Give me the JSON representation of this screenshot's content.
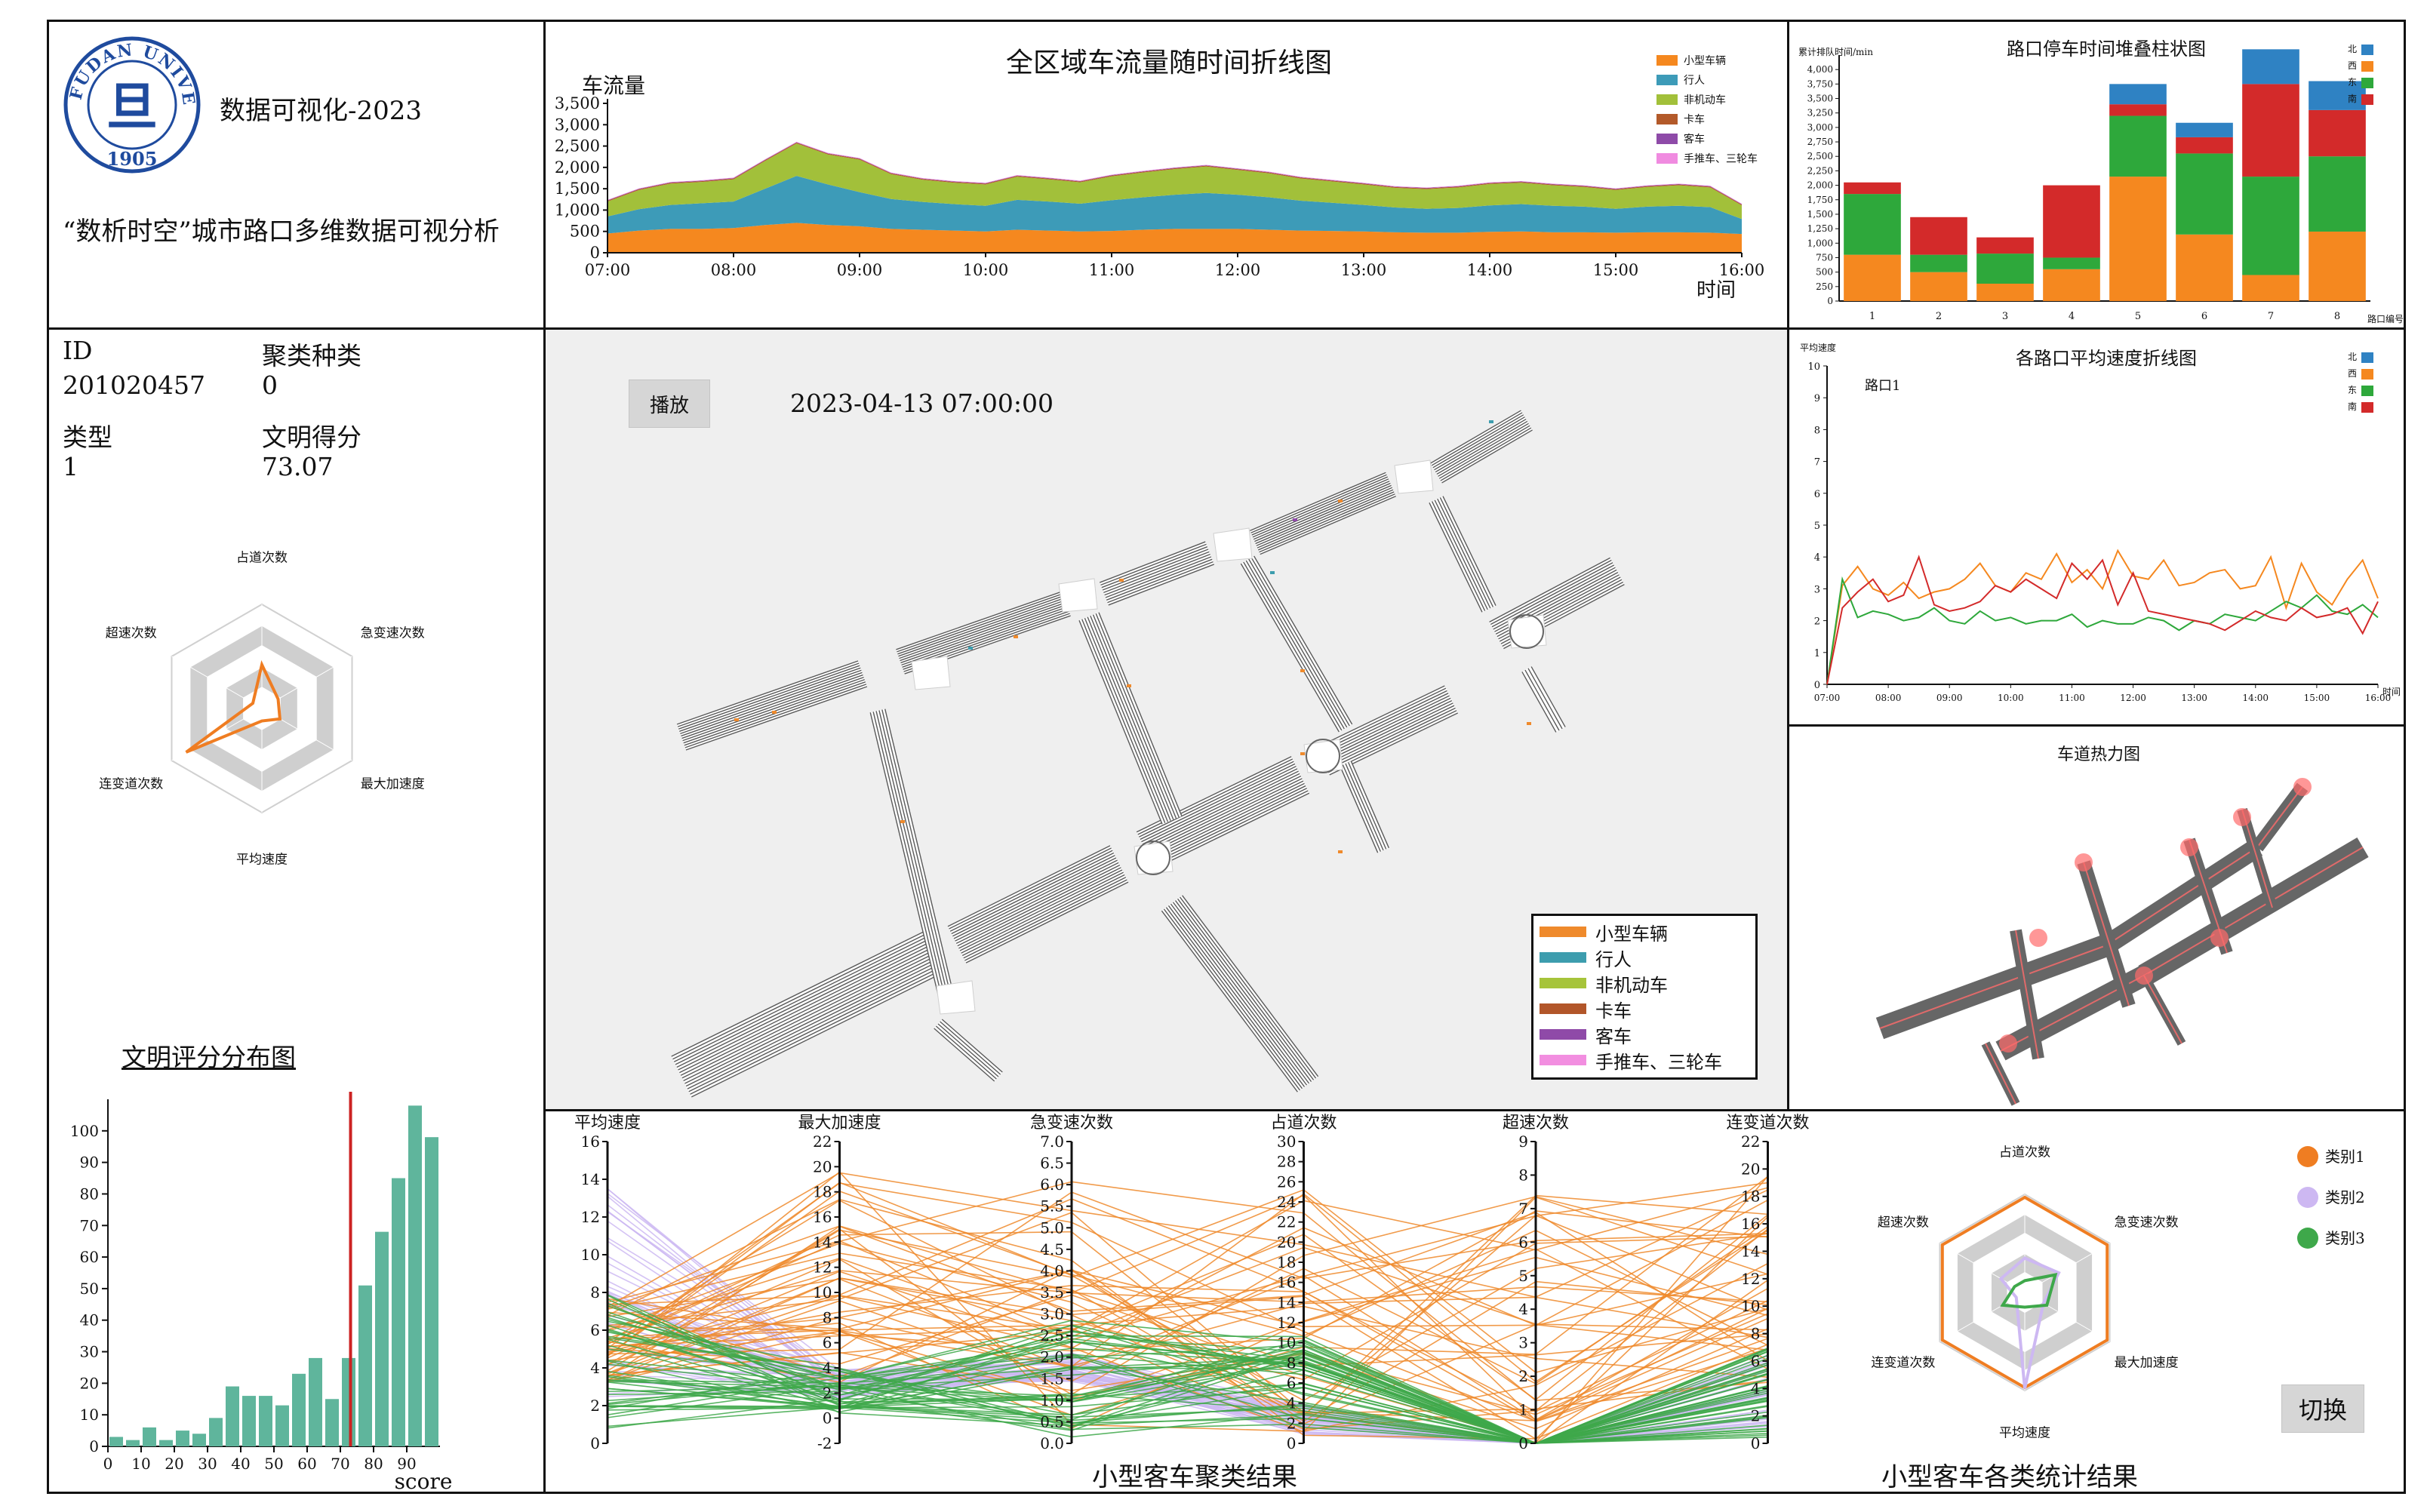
{
  "header": {
    "university": "FUDAN UNIVERSITY",
    "year": "1905",
    "seal_char": "旦",
    "course": "数据可视化-2023",
    "project_title": "“数析时空”城市路口多维数据可视分析"
  },
  "profile": {
    "id_label": "ID",
    "id_value": "201020457",
    "cluster_label": "聚类种类",
    "cluster_value": "0",
    "type_label": "类型",
    "type_value": "1",
    "score_label": "文明得分",
    "score_value": "73.07"
  },
  "radar": {
    "axes": [
      "占道次数",
      "急变速次数",
      "最大加速度",
      "平均速度",
      "连变道次数",
      "超速次数"
    ],
    "values": [
      0.42,
      0.18,
      0.2,
      0.12,
      0.84,
      0.1
    ],
    "color": "#ef7d22"
  },
  "histogram": {
    "title": "文明评分分布图",
    "chart_data": {
      "type": "bar",
      "x": [
        2.5,
        7.5,
        12.5,
        17.5,
        22.5,
        27.5,
        32.5,
        37.5,
        42.5,
        47.5,
        52.5,
        57.5,
        62.5,
        67.5,
        72.5,
        77.5,
        82.5,
        87.5,
        92.5,
        97.5
      ],
      "values": [
        3,
        2,
        6,
        2,
        5,
        4,
        9,
        19,
        16,
        16,
        13,
        23,
        28,
        15,
        28,
        51,
        68,
        85,
        108,
        98
      ],
      "xlabel": "score",
      "xticks": [
        0,
        10,
        20,
        30,
        40,
        50,
        60,
        70,
        80,
        90
      ],
      "yticks": [
        0,
        10,
        20,
        30,
        40,
        50,
        60,
        70,
        80,
        90,
        100
      ],
      "ylim": [
        0,
        110
      ],
      "marker": 73.07,
      "bar_color": "#5fb59c",
      "marker_color": "#cc2222"
    }
  },
  "flow": {
    "title": "全区域车流量随时间折线图",
    "ylabel": "车流量",
    "xlabel": "时间",
    "legend": [
      "小型车辆",
      "行人",
      "非机动车",
      "卡车",
      "客车",
      "手推车、三轮车"
    ],
    "chart_data": {
      "type": "area",
      "x": [
        "07:00",
        "07:15",
        "07:30",
        "07:45",
        "08:00",
        "08:15",
        "08:30",
        "08:45",
        "09:00",
        "09:15",
        "09:30",
        "09:45",
        "10:00",
        "10:15",
        "10:30",
        "10:45",
        "11:00",
        "11:15",
        "11:30",
        "11:45",
        "12:00",
        "12:15",
        "12:30",
        "12:45",
        "13:00",
        "13:15",
        "13:30",
        "13:45",
        "14:00",
        "14:15",
        "14:30",
        "14:45",
        "15:00",
        "15:15",
        "15:30",
        "15:45",
        "16:00"
      ],
      "xticks": [
        "07:00",
        "08:00",
        "09:00",
        "10:00",
        "11:00",
        "12:00",
        "13:00",
        "14:00",
        "15:00",
        "16:00"
      ],
      "yticks": [
        0,
        500,
        1000,
        1500,
        2000,
        2500,
        3000,
        3500
      ],
      "ylim": [
        0,
        3500
      ],
      "series": [
        {
          "name": "小型车辆",
          "values": [
            450,
            520,
            560,
            560,
            580,
            650,
            700,
            650,
            620,
            560,
            540,
            520,
            500,
            540,
            520,
            500,
            510,
            540,
            560,
            560,
            560,
            540,
            520,
            510,
            500,
            480,
            470,
            470,
            490,
            500,
            480,
            480,
            470,
            480,
            480,
            470,
            440
          ]
        },
        {
          "name": "行人",
          "values": [
            400,
            500,
            560,
            600,
            620,
            850,
            1100,
            950,
            800,
            700,
            650,
            620,
            600,
            700,
            680,
            650,
            720,
            760,
            800,
            840,
            800,
            760,
            700,
            660,
            620,
            580,
            560,
            580,
            620,
            640,
            620,
            600,
            560,
            600,
            620,
            600,
            350
          ]
        },
        {
          "name": "非机动车",
          "values": [
            350,
            450,
            500,
            500,
            520,
            650,
            760,
            700,
            760,
            580,
            520,
            500,
            500,
            540,
            520,
            500,
            560,
            580,
            600,
            620,
            580,
            560,
            520,
            500,
            480,
            460,
            460,
            480,
            500,
            500,
            480,
            460,
            440,
            460,
            480,
            460,
            320
          ]
        },
        {
          "name": "卡车",
          "values": [
            20,
            20,
            20,
            20,
            20,
            20,
            20,
            20,
            20,
            20,
            20,
            20,
            20,
            20,
            20,
            20,
            20,
            20,
            20,
            20,
            20,
            20,
            20,
            20,
            20,
            20,
            20,
            20,
            20,
            20,
            20,
            20,
            20,
            20,
            20,
            20,
            20
          ]
        },
        {
          "name": "客车",
          "values": [
            10,
            10,
            10,
            10,
            10,
            10,
            10,
            10,
            10,
            10,
            10,
            10,
            10,
            10,
            10,
            10,
            10,
            10,
            10,
            10,
            10,
            10,
            10,
            10,
            10,
            10,
            10,
            10,
            10,
            10,
            10,
            10,
            10,
            10,
            10,
            10,
            10
          ]
        },
        {
          "name": "手推车、三轮车",
          "values": [
            10,
            10,
            10,
            10,
            10,
            10,
            10,
            10,
            10,
            10,
            10,
            10,
            10,
            10,
            10,
            10,
            10,
            10,
            10,
            10,
            10,
            10,
            10,
            10,
            10,
            10,
            10,
            10,
            10,
            10,
            10,
            10,
            10,
            10,
            10,
            10,
            10
          ]
        }
      ]
    }
  },
  "stack": {
    "title": "路口停车时间堆叠柱状图",
    "ylabel": "累计排队时间/min",
    "xlabel": "路口编号",
    "legend": [
      "北",
      "西",
      "东",
      "南"
    ],
    "chart_data": {
      "type": "bar",
      "categories": [
        "1",
        "2",
        "3",
        "4",
        "5",
        "6",
        "7",
        "8"
      ],
      "yticks": [
        0,
        250,
        500,
        750,
        1000,
        1250,
        1500,
        1750,
        2000,
        2250,
        2500,
        2750,
        3000,
        3250,
        3500,
        3750,
        4000
      ],
      "ylim": [
        0,
        4250
      ],
      "series": [
        {
          "name": "西",
          "values": [
            800,
            500,
            300,
            550,
            2150,
            1150,
            450,
            1200
          ]
        },
        {
          "name": "东",
          "values": [
            1050,
            300,
            520,
            200,
            1050,
            1400,
            1700,
            1300
          ]
        },
        {
          "name": "南",
          "values": [
            200,
            650,
            280,
            1250,
            200,
            280,
            1600,
            800
          ]
        },
        {
          "name": "北",
          "values": [
            0,
            0,
            0,
            0,
            350,
            250,
            600,
            500
          ]
        }
      ]
    }
  },
  "speed": {
    "title": "各路口平均速度折线图",
    "ylabel": "平均速度",
    "xlabel": "时间",
    "crossing_label": "路口1",
    "legend": [
      "北",
      "西",
      "东",
      "南"
    ],
    "chart_data": {
      "type": "line",
      "x": [
        "07:00",
        "07:15",
        "07:30",
        "07:45",
        "08:00",
        "08:15",
        "08:30",
        "08:45",
        "09:00",
        "09:15",
        "09:30",
        "09:45",
        "10:00",
        "10:15",
        "10:30",
        "10:45",
        "11:00",
        "11:15",
        "11:30",
        "11:45",
        "12:00",
        "12:15",
        "12:30",
        "12:45",
        "13:00",
        "13:15",
        "13:30",
        "13:45",
        "14:00",
        "14:15",
        "14:30",
        "14:45",
        "15:00",
        "15:15",
        "15:30",
        "15:45",
        "16:00"
      ],
      "xticks": [
        "07:00",
        "08:00",
        "09:00",
        "10:00",
        "11:00",
        "12:00",
        "13:00",
        "14:00",
        "15:00",
        "16:00"
      ],
      "yticks": [
        0,
        1,
        2,
        3,
        4,
        5,
        6,
        7,
        8,
        9,
        10
      ],
      "ylim": [
        0,
        10
      ],
      "series": [
        {
          "name": "西",
          "values": [
            0,
            3.1,
            3.7,
            3.0,
            2.8,
            3.2,
            2.7,
            2.9,
            3.0,
            3.3,
            3.8,
            3.1,
            2.9,
            3.5,
            3.3,
            4.1,
            3.2,
            3.6,
            3.0,
            4.2,
            3.4,
            3.3,
            3.9,
            3.1,
            3.2,
            3.5,
            3.6,
            3.0,
            3.1,
            4.0,
            2.4,
            3.8,
            2.9,
            2.5,
            3.3,
            3.9,
            2.7
          ]
        },
        {
          "name": "东",
          "values": [
            0,
            3.3,
            2.1,
            2.3,
            2.2,
            2.0,
            2.1,
            2.4,
            2.0,
            1.9,
            2.3,
            2.0,
            2.1,
            1.9,
            2.0,
            2.0,
            2.2,
            1.8,
            2.0,
            1.9,
            1.9,
            2.1,
            2.0,
            1.7,
            2.0,
            1.9,
            2.2,
            2.1,
            2.0,
            2.3,
            2.6,
            2.4,
            2.8,
            2.3,
            2.2,
            2.5,
            2.1
          ]
        },
        {
          "name": "南",
          "values": [
            0,
            2.4,
            2.9,
            3.3,
            2.6,
            2.8,
            4.0,
            2.5,
            2.3,
            2.4,
            2.6,
            3.1,
            2.9,
            3.3,
            3.0,
            2.7,
            3.8,
            3.3,
            3.9,
            2.5,
            3.5,
            2.3,
            2.2,
            2.1,
            2.0,
            1.9,
            1.7,
            2.0,
            2.3,
            2.1,
            2.0,
            2.4,
            2.1,
            2.2,
            2.4,
            1.6,
            2.6
          ]
        }
      ]
    }
  },
  "map": {
    "play_label": "播放",
    "timestamp": "2023-04-13 07:00:00",
    "legend": [
      {
        "label": "小型车辆",
        "color": "#ef8a2c"
      },
      {
        "label": "行人",
        "color": "#3d9dae"
      },
      {
        "label": "非机动车",
        "color": "#a6c43a"
      },
      {
        "label": "卡车",
        "color": "#b2562a"
      },
      {
        "label": "客车",
        "color": "#8f4aa8"
      },
      {
        "label": "手推车、三轮车",
        "color": "#f28ee0"
      }
    ]
  },
  "heatmap": {
    "title": "车道热力图"
  },
  "parallel": {
    "title": "小型客车聚类结果",
    "axes": [
      {
        "name": "平均速度",
        "ticks": [
          "16",
          "14",
          "12",
          "10",
          "8",
          "6",
          "4",
          "2",
          "0"
        ]
      },
      {
        "name": "最大加速度",
        "ticks": [
          "22",
          "20",
          "18",
          "16",
          "14",
          "12",
          "10",
          "8",
          "6",
          "4",
          "2",
          "0",
          "-2"
        ]
      },
      {
        "name": "急变速次数",
        "ticks": [
          "7.0",
          "6.5",
          "6.0",
          "5.5",
          "5.0",
          "4.5",
          "4.0",
          "3.5",
          "3.0",
          "2.5",
          "2.0",
          "1.5",
          "1.0",
          "0.5",
          "0.0"
        ]
      },
      {
        "name": "占道次数",
        "ticks": [
          "30",
          "28",
          "26",
          "24",
          "22",
          "20",
          "18",
          "16",
          "14",
          "12",
          "10",
          "8",
          "6",
          "4",
          "2",
          "0"
        ]
      },
      {
        "name": "超速次数",
        "ticks": [
          "9",
          "8",
          "7",
          "6",
          "5",
          "4",
          "3",
          "2",
          "1",
          "0"
        ]
      },
      {
        "name": "连变道次数",
        "ticks": [
          "22",
          "20",
          "18",
          "16",
          "14",
          "12",
          "10",
          "8",
          "6",
          "4",
          "2",
          "0"
        ]
      }
    ]
  },
  "cluster_radar": {
    "title": "小型客车各类统计结果",
    "axes": [
      "占道次数",
      "急变速次数",
      "最大加速度",
      "平均速度",
      "连变道次数",
      "超速次数"
    ],
    "legend": [
      "类别1",
      "类别2",
      "类别3"
    ],
    "colors": [
      "#ef7d22",
      "#cdb8f2",
      "#3ea84a"
    ],
    "series": [
      [
        0.97,
        0.97,
        0.97,
        0.97,
        0.97,
        0.97
      ],
      [
        0.35,
        0.4,
        0.22,
        0.98,
        0.1,
        0.28
      ],
      [
        0.12,
        0.36,
        0.26,
        0.15,
        0.26,
        0.12
      ]
    ],
    "switch_label": "切换"
  }
}
